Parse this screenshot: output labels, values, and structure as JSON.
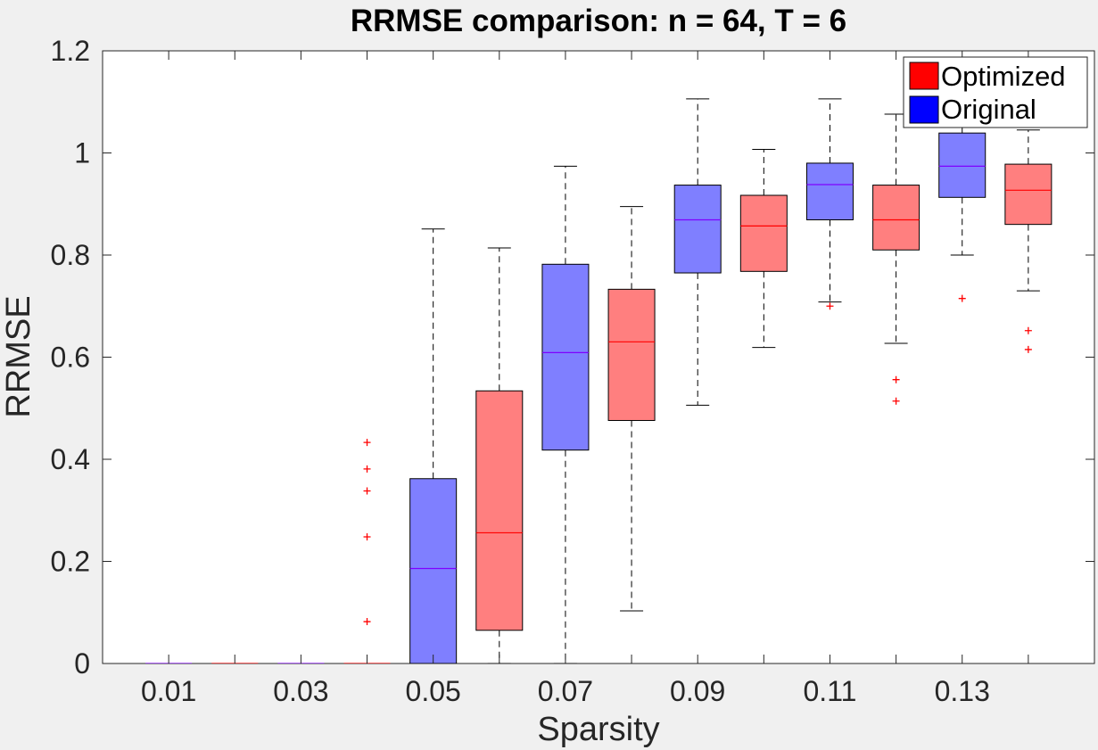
{
  "chart_data": {
    "type": "box",
    "title": "RRMSE comparison: n = 64, T = 6",
    "xlabel": "Sparsity",
    "ylabel": "RRMSE",
    "ylim": [
      0,
      1.2
    ],
    "yticks": [
      "0",
      "0.2",
      "0.4",
      "0.6",
      "0.8",
      "1",
      "1.2"
    ],
    "xticks": [
      "0.01",
      "0.03",
      "0.05",
      "0.07",
      "0.09",
      "0.11",
      "0.13"
    ],
    "grid": false,
    "legend_position": "top-right",
    "legend": [
      {
        "name": "Optimized",
        "color": "#ff0000"
      },
      {
        "name": "Original",
        "color": "#0000ff"
      }
    ],
    "colors": {
      "optimized_fill": "#ff7f7f",
      "original_fill": "#7f7fff",
      "optimized_median": "#ff0000",
      "original_median": "#7f00ff",
      "outlier": "#ff0000"
    },
    "boxes": [
      {
        "sparsity": 0.01,
        "series": "Original",
        "min": 0,
        "q1": 0,
        "median": 0,
        "q3": 0,
        "max": 0,
        "outliers": []
      },
      {
        "sparsity": 0.02,
        "series": "Optimized",
        "min": 0,
        "q1": 0,
        "median": 0,
        "q3": 0,
        "max": 0,
        "outliers": []
      },
      {
        "sparsity": 0.03,
        "series": "Original",
        "min": 0,
        "q1": 0,
        "median": 0,
        "q3": 0,
        "max": 0,
        "outliers": []
      },
      {
        "sparsity": 0.04,
        "series": "Optimized",
        "min": 0,
        "q1": 0,
        "median": 0,
        "q3": 0,
        "max": 0,
        "outliers": [
          0.082,
          0.248,
          0.338,
          0.381,
          0.433
        ]
      },
      {
        "sparsity": 0.05,
        "series": "Original",
        "min": 0,
        "q1": 0,
        "median": 0.186,
        "q3": 0.362,
        "max": 0.851,
        "outliers": []
      },
      {
        "sparsity": 0.06,
        "series": "Optimized",
        "min": 0,
        "q1": 0.065,
        "median": 0.256,
        "q3": 0.534,
        "max": 0.814,
        "outliers": []
      },
      {
        "sparsity": 0.07,
        "series": "Original",
        "min": 0,
        "q1": 0.418,
        "median": 0.609,
        "q3": 0.782,
        "max": 0.974,
        "outliers": []
      },
      {
        "sparsity": 0.08,
        "series": "Optimized",
        "min": 0.103,
        "q1": 0.476,
        "median": 0.63,
        "q3": 0.733,
        "max": 0.895,
        "outliers": []
      },
      {
        "sparsity": 0.09,
        "series": "Original",
        "min": 0.506,
        "q1": 0.765,
        "median": 0.869,
        "q3": 0.937,
        "max": 1.106,
        "outliers": []
      },
      {
        "sparsity": 0.1,
        "series": "Optimized",
        "min": 0.619,
        "q1": 0.768,
        "median": 0.857,
        "q3": 0.917,
        "max": 1.007,
        "outliers": []
      },
      {
        "sparsity": 0.11,
        "series": "Original",
        "min": 0.708,
        "q1": 0.869,
        "median": 0.938,
        "q3": 0.98,
        "max": 1.106,
        "outliers": [
          0.7
        ]
      },
      {
        "sparsity": 0.12,
        "series": "Optimized",
        "min": 0.627,
        "q1": 0.81,
        "median": 0.869,
        "q3": 0.937,
        "max": 1.076,
        "outliers": [
          0.514,
          0.556
        ]
      },
      {
        "sparsity": 0.13,
        "series": "Original",
        "min": 0.8,
        "q1": 0.913,
        "median": 0.974,
        "q3": 1.039,
        "max": 1.15,
        "outliers": [
          0.715
        ]
      },
      {
        "sparsity": 0.14,
        "series": "Optimized",
        "min": 0.73,
        "q1": 0.86,
        "median": 0.927,
        "q3": 0.978,
        "max": 1.045,
        "outliers": [
          0.615,
          0.652
        ]
      }
    ]
  }
}
